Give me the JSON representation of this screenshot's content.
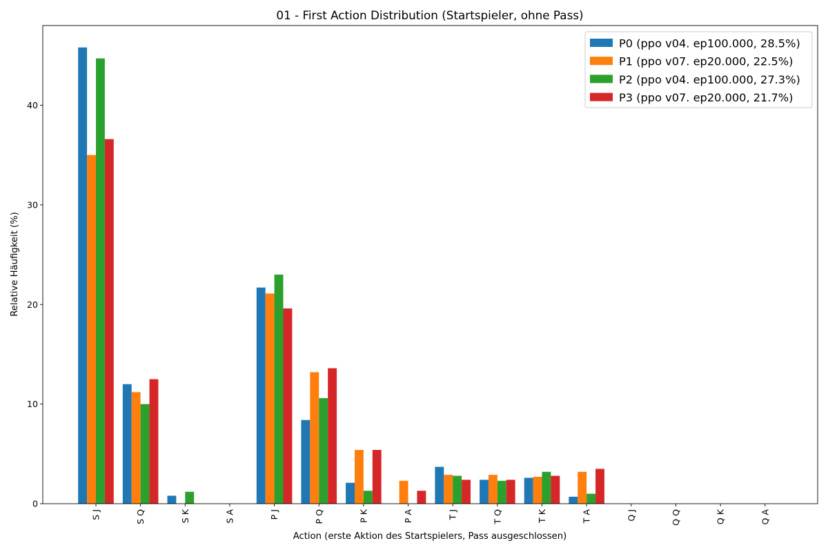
{
  "chart_data": {
    "type": "bar",
    "title": "01 - First Action Distribution (Startspieler, ohne Pass)",
    "xlabel": "Action (erste Aktion des Startspielers, Pass ausgeschlossen)",
    "ylabel": "Relative Häufigkeit (%)",
    "ylim": [
      0,
      48
    ],
    "yticks": [
      0,
      10,
      20,
      30,
      40
    ],
    "grid": false,
    "legend_position": "top-right",
    "categories": [
      "S J",
      "S Q",
      "S K",
      "S A",
      "P J",
      "P Q",
      "P K",
      "P A",
      "T J",
      "T Q",
      "T K",
      "T A",
      "Q J",
      "Q Q",
      "Q K",
      "Q A"
    ],
    "series": [
      {
        "name": "P0 (ppo v04. ep100.000, 28.5%)",
        "color": "#1f77b4",
        "values": [
          45.8,
          12.0,
          0.8,
          0,
          21.7,
          8.4,
          2.1,
          0,
          3.7,
          2.4,
          2.6,
          0.7,
          0,
          0,
          0,
          0
        ]
      },
      {
        "name": "P1 (ppo v07. ep20.000, 22.5%)",
        "color": "#ff7f0e",
        "values": [
          35.0,
          11.2,
          0,
          0,
          21.1,
          13.2,
          5.4,
          2.3,
          2.9,
          2.9,
          2.7,
          3.2,
          0,
          0,
          0,
          0
        ]
      },
      {
        "name": "P2 (ppo v04. ep100.000, 27.3%)",
        "color": "#2ca02c",
        "values": [
          44.7,
          10.0,
          1.2,
          0,
          23.0,
          10.6,
          1.3,
          0,
          2.8,
          2.3,
          3.2,
          1.0,
          0,
          0,
          0,
          0
        ]
      },
      {
        "name": "P3 (ppo v07. ep20.000, 21.7%)",
        "color": "#d62728",
        "values": [
          36.6,
          12.5,
          0,
          0,
          19.6,
          13.6,
          5.4,
          1.3,
          2.4,
          2.4,
          2.8,
          3.5,
          0,
          0,
          0,
          0
        ]
      }
    ]
  }
}
